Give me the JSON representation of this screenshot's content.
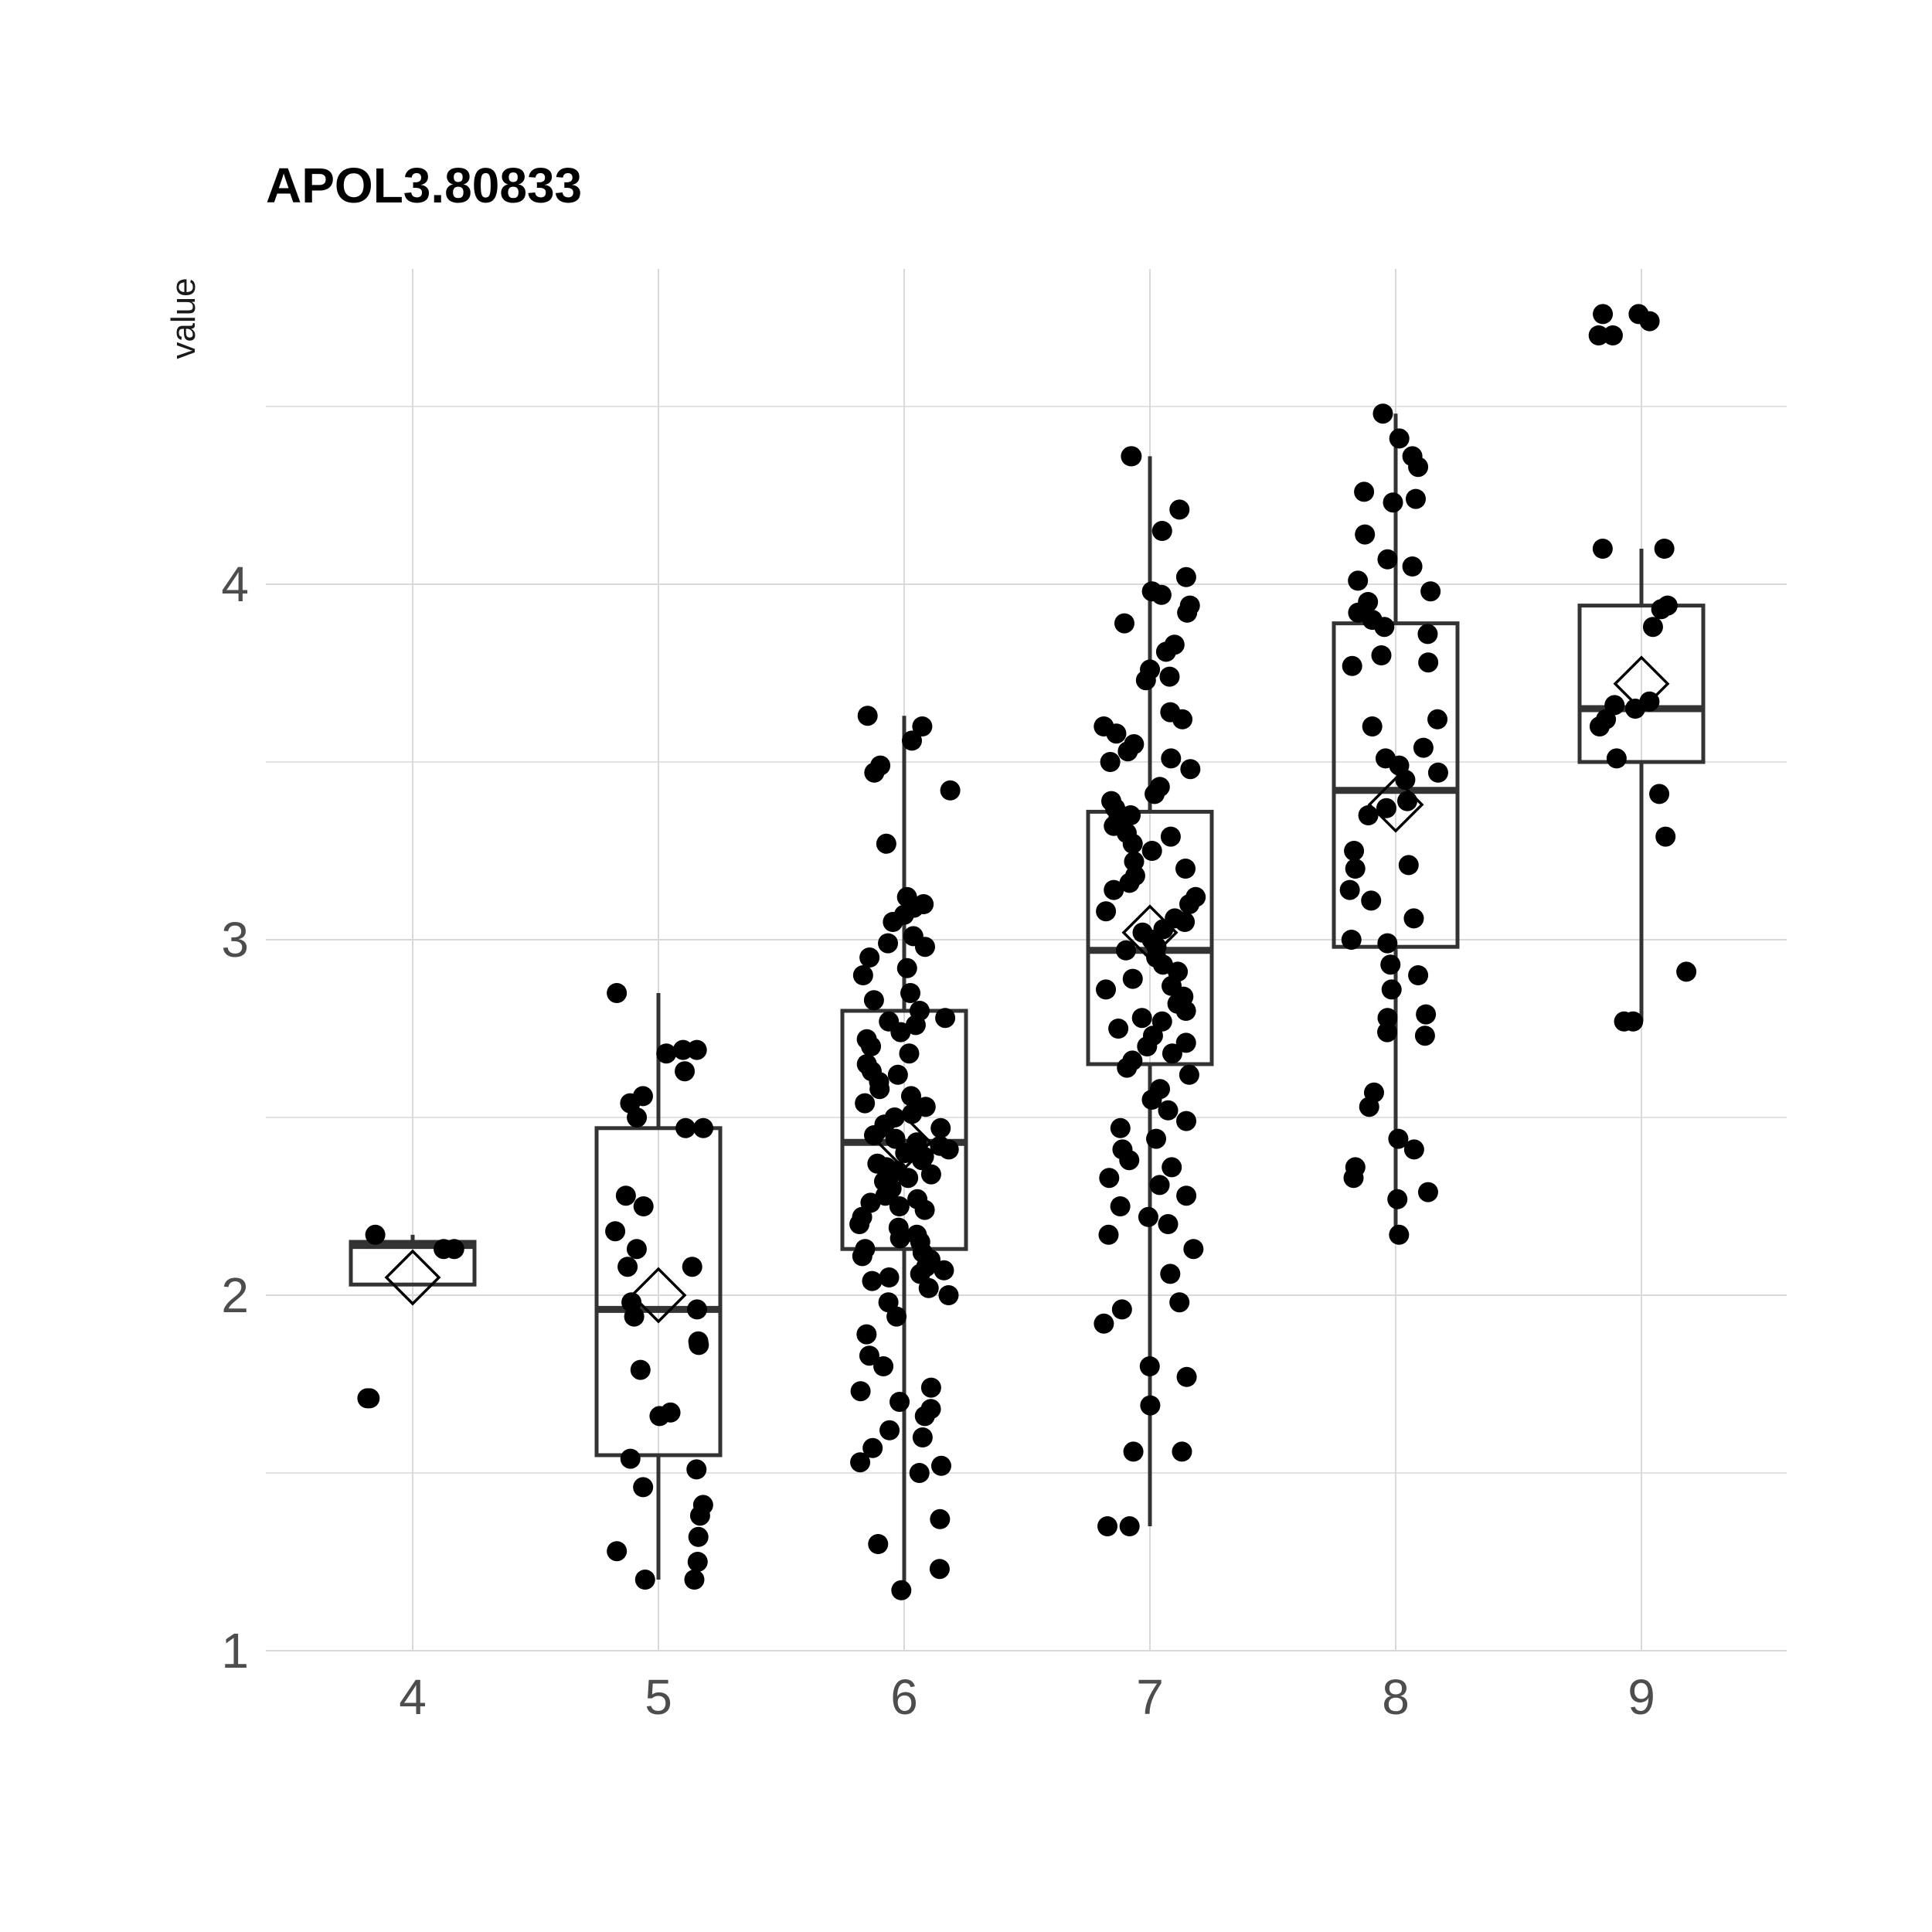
{
  "chart_data": {
    "type": "box",
    "title": "APOL3.80833",
    "ylabel": "value",
    "xlabel": "",
    "categories": [
      "4",
      "5",
      "6",
      "7",
      "8",
      "9"
    ],
    "y_ticks": [
      1,
      2,
      3,
      4
    ],
    "ylim": [
      1,
      4.85
    ],
    "grid": true,
    "boxes": [
      {
        "category": "4",
        "lower_whisker": 2.03,
        "q1": 2.03,
        "median": 2.14,
        "q3": 2.15,
        "upper_whisker": 2.17,
        "mean": 2.05
      },
      {
        "category": "5",
        "lower_whisker": 1.2,
        "q1": 1.55,
        "median": 1.96,
        "q3": 2.47,
        "upper_whisker": 2.85,
        "mean": 2.0
      },
      {
        "category": "6",
        "lower_whisker": 1.17,
        "q1": 2.13,
        "median": 2.43,
        "q3": 2.8,
        "upper_whisker": 3.63,
        "mean": 2.43
      },
      {
        "category": "7",
        "lower_whisker": 1.35,
        "q1": 2.65,
        "median": 2.97,
        "q3": 3.36,
        "upper_whisker": 4.36,
        "mean": 3.02
      },
      {
        "category": "8",
        "lower_whisker": 2.17,
        "q1": 2.98,
        "median": 3.42,
        "q3": 3.89,
        "upper_whisker": 4.48,
        "mean": 3.38
      },
      {
        "category": "9",
        "lower_whisker": 2.77,
        "q1": 3.5,
        "median": 3.65,
        "q3": 3.94,
        "upper_whisker": 4.1,
        "mean": 3.72
      }
    ],
    "points": [
      {
        "category": "4",
        "values": [
          2.17,
          2.13,
          2.13,
          1.71,
          1.71
        ]
      },
      {
        "category": "5",
        "values": [
          2.85,
          2.69,
          2.68,
          2.69,
          2.63,
          2.56,
          2.54,
          2.5,
          2.47,
          2.47,
          2.28,
          2.25,
          2.18,
          2.13,
          2.08,
          2.08,
          1.98,
          1.96,
          1.94,
          1.87,
          1.86,
          1.79,
          1.67,
          1.66,
          1.54,
          1.51,
          1.46,
          1.41,
          1.38,
          1.32,
          1.28,
          1.25,
          1.2,
          1.2
        ]
      },
      {
        "category": "6",
        "values": [
          3.63,
          3.6,
          3.56,
          3.49,
          3.47,
          3.42,
          3.27,
          3.12,
          3.1,
          3.09,
          3.07,
          3.05,
          3.01,
          2.99,
          2.98,
          2.95,
          2.92,
          2.9,
          2.85,
          2.83,
          2.8,
          2.78,
          2.77,
          2.76,
          2.74,
          2.72,
          2.7,
          2.68,
          2.65,
          2.63,
          2.62,
          2.6,
          2.58,
          2.56,
          2.54,
          2.53,
          2.51,
          2.5,
          2.48,
          2.47,
          2.45,
          2.44,
          2.43,
          2.42,
          2.41,
          2.4,
          2.39,
          2.38,
          2.37,
          2.36,
          2.35,
          2.34,
          2.33,
          2.32,
          2.3,
          2.28,
          2.27,
          2.26,
          2.25,
          2.24,
          2.22,
          2.2,
          2.19,
          2.17,
          2.16,
          2.15,
          2.13,
          2.12,
          2.11,
          2.1,
          2.08,
          2.07,
          2.06,
          2.05,
          2.04,
          2.02,
          2.0,
          1.98,
          1.94,
          1.89,
          1.83,
          1.8,
          1.74,
          1.73,
          1.7,
          1.68,
          1.66,
          1.62,
          1.6,
          1.57,
          1.53,
          1.52,
          1.5,
          1.37,
          1.3,
          1.23,
          1.17
        ]
      },
      {
        "category": "7",
        "values": [
          4.36,
          4.36,
          4.21,
          4.15,
          4.02,
          3.98,
          3.97,
          3.94,
          3.92,
          3.89,
          3.83,
          3.81,
          3.76,
          3.74,
          3.73,
          3.64,
          3.62,
          3.6,
          3.58,
          3.55,
          3.53,
          3.51,
          3.5,
          3.48,
          3.43,
          3.41,
          3.39,
          3.37,
          3.35,
          3.34,
          3.32,
          3.3,
          3.29,
          3.27,
          3.25,
          3.22,
          3.2,
          3.18,
          3.16,
          3.14,
          3.12,
          3.1,
          3.08,
          3.06,
          3.05,
          3.03,
          3.02,
          3.0,
          2.98,
          2.97,
          2.95,
          2.93,
          2.91,
          2.89,
          2.87,
          2.86,
          2.84,
          2.82,
          2.8,
          2.78,
          2.77,
          2.75,
          2.73,
          2.71,
          2.7,
          2.68,
          2.66,
          2.64,
          2.62,
          2.58,
          2.55,
          2.52,
          2.49,
          2.47,
          2.44,
          2.41,
          2.38,
          2.36,
          2.33,
          2.31,
          2.28,
          2.25,
          2.22,
          2.2,
          2.17,
          2.13,
          2.06,
          1.98,
          1.96,
          1.92,
          1.8,
          1.77,
          1.69,
          1.56,
          1.56,
          1.35,
          1.35
        ]
      },
      {
        "category": "8",
        "values": [
          4.48,
          4.41,
          4.36,
          4.33,
          4.26,
          4.24,
          4.23,
          4.14,
          4.07,
          4.05,
          4.01,
          3.98,
          3.95,
          3.92,
          3.9,
          3.88,
          3.86,
          3.8,
          3.78,
          3.77,
          3.62,
          3.6,
          3.54,
          3.51,
          3.49,
          3.47,
          3.45,
          3.39,
          3.37,
          3.35,
          3.25,
          3.21,
          3.2,
          3.14,
          3.11,
          3.06,
          3.0,
          2.99,
          2.93,
          2.9,
          2.86,
          2.79,
          2.78,
          2.74,
          2.73,
          2.57,
          2.53,
          2.44,
          2.41,
          2.36,
          2.33,
          2.29,
          2.27,
          2.17
        ]
      },
      {
        "category": "9",
        "values": [
          4.76,
          4.76,
          4.74,
          4.7,
          4.7,
          4.1,
          4.1,
          3.94,
          3.93,
          3.88,
          3.67,
          3.66,
          3.65,
          3.62,
          3.6,
          3.51,
          3.41,
          3.29,
          2.91,
          2.77,
          2.77
        ]
      }
    ]
  }
}
